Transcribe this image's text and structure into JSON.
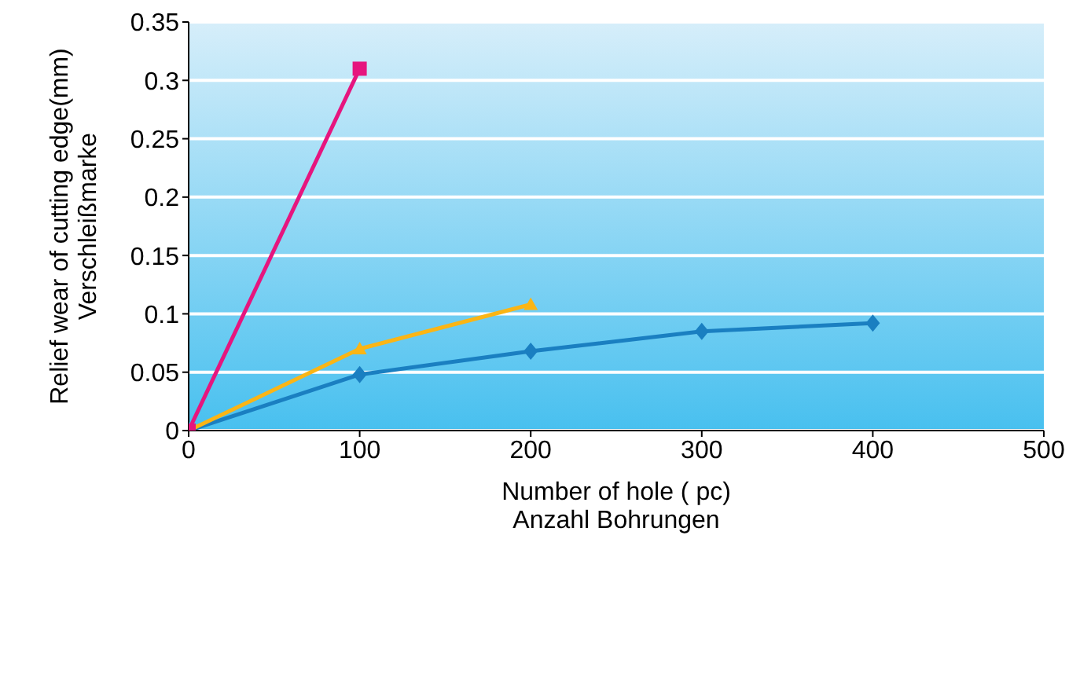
{
  "chart_data": {
    "type": "line",
    "xlabel": "Number of hole ( pc)\nAnzahl Bohrungen",
    "ylabel": "Relief wear of cutting edge(mm)\nVerschleißmarke",
    "series": [
      {
        "color": "#1a7fc1",
        "marker": "diamond",
        "x": [
          0,
          100,
          200,
          300,
          400
        ],
        "values": [
          0,
          0.048,
          0.068,
          0.085,
          0.092
        ]
      },
      {
        "color": "#fbb515",
        "marker": "triangle",
        "x": [
          0,
          100,
          200
        ],
        "values": [
          0,
          0.07,
          0.108
        ]
      },
      {
        "color": "#e6157e",
        "marker": "square",
        "x": [
          0,
          100
        ],
        "values": [
          0,
          0.31
        ]
      }
    ],
    "xlim": [
      0,
      500
    ],
    "xticks": [
      0,
      100,
      200,
      300,
      400,
      500
    ],
    "ylim": [
      0,
      0.35
    ],
    "yticks": [
      0,
      0.05,
      0.1,
      0.15,
      0.2,
      0.25,
      0.3,
      0.35
    ],
    "grid": "y",
    "legend": false
  }
}
